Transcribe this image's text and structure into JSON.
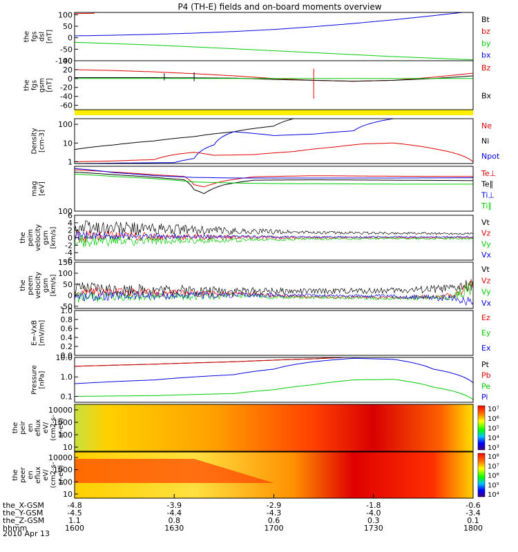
{
  "title": "P4 (TH-E) fields and on-board moments overview",
  "date_label": "2010 Apr 13",
  "colors": {
    "black": "#000000",
    "red": "#e00000",
    "green": "#00cc00",
    "blue": "#0000e0",
    "yellow": "#ffee00"
  },
  "chart_data": [
    {
      "type": "line",
      "id": "fgs_dsl",
      "ylabel_lines": [
        "the",
        "fgs",
        "dsl",
        "[nT]"
      ],
      "yticks": [
        "100",
        "50",
        "0",
        "-50",
        "-100"
      ],
      "ylim": [
        -100,
        110
      ],
      "legend": [
        "Bt",
        "bz",
        "by",
        "bx"
      ],
      "series": [
        {
          "name": "Bt",
          "color": "black",
          "x": [
            1600,
            1645,
            1720,
            1800
          ],
          "y": [
            200,
            230,
            280,
            330
          ]
        },
        {
          "name": "bz",
          "color": "red",
          "x": [
            1600,
            1610
          ],
          "y": [
            105,
            106
          ]
        },
        {
          "name": "by",
          "color": "green",
          "x": [
            1600,
            1640,
            1680,
            1720,
            1760,
            1800
          ],
          "y": [
            -20,
            -32,
            -48,
            -65,
            -82,
            -96
          ]
        },
        {
          "name": "bx",
          "color": "blue",
          "x": [
            1600,
            1620,
            1640,
            1660,
            1680,
            1700,
            1720,
            1740,
            1760,
            1780,
            1800
          ],
          "y": [
            8,
            11,
            15,
            20,
            27,
            36,
            48,
            62,
            78,
            96,
            115
          ]
        }
      ]
    },
    {
      "type": "line",
      "id": "fgs_gsm",
      "ylabel_lines": [
        "the",
        "fgs",
        "gsm",
        "[nT]"
      ],
      "yticks": [
        "40",
        "20",
        "0",
        "-20",
        "-40",
        "-60"
      ],
      "ylim": [
        -70,
        40
      ],
      "legend": [
        "Bz",
        "Bx"
      ],
      "series": [
        {
          "name": "Bz",
          "color": "red",
          "x": [
            1600,
            1620,
            1640,
            1660,
            1680,
            1700,
            1720,
            1740,
            1760,
            1780,
            1800
          ],
          "y": [
            20,
            18,
            15,
            11,
            6,
            0,
            -4,
            -6,
            -4,
            3,
            12
          ]
        },
        {
          "name": "Bx",
          "color": "black",
          "x": [
            1600,
            1640,
            1680,
            1700,
            1720,
            1740,
            1760,
            1780,
            1800
          ],
          "y": [
            2,
            2,
            1,
            -2,
            -4,
            -6,
            -4,
            0,
            6
          ]
        },
        {
          "name": "By",
          "color": "green",
          "x": [
            1600,
            1700,
            1800
          ],
          "y": [
            0,
            0,
            0
          ]
        }
      ]
    },
    {
      "type": "line",
      "id": "density",
      "scale": "log",
      "ylabel_lines": [
        "Density",
        "[cm-3]"
      ],
      "yticks": [
        "100",
        "10",
        "1"
      ],
      "ylim": [
        0.8,
        200
      ],
      "legend": [
        "Ne",
        "Ni",
        "Npot"
      ],
      "series": [
        {
          "name": "Ne",
          "color": "red",
          "x": [
            1600,
            1620,
            1640,
            1650,
            1660,
            1670,
            1690,
            1710,
            1730,
            1745,
            1760,
            1780,
            1800
          ],
          "y": [
            1.0,
            1.1,
            1.3,
            2.4,
            3.2,
            2.2,
            2.4,
            3.5,
            6,
            9,
            10,
            5,
            1
          ]
        },
        {
          "name": "Ni",
          "color": "black",
          "x": [
            1600,
            1620,
            1640,
            1660,
            1680,
            1700,
            1710
          ],
          "y": [
            4.5,
            8,
            13,
            22,
            40,
            80,
            200
          ]
        },
        {
          "name": "Npot",
          "color": "blue",
          "x": [
            1600,
            1650,
            1660,
            1670,
            1680,
            1700,
            1720,
            1740,
            1760,
            1770
          ],
          "y": [
            0.8,
            0.9,
            1.5,
            8,
            40,
            25,
            30,
            45,
            200,
            200
          ]
        }
      ]
    },
    {
      "type": "line",
      "id": "temperature",
      "scale": "log",
      "ylabel_lines": [
        "mag",
        "[eV]"
      ],
      "yticks": [
        "100"
      ],
      "ylim": [
        100,
        10000.0
      ],
      "legend": [
        "Te⊥",
        "Te∥",
        "Ti⊥",
        "Ti∥"
      ],
      "series": [
        {
          "name": "Te⊥",
          "color": "red",
          "x": [
            1600,
            1620,
            1640,
            1655,
            1660,
            1665,
            1675,
            1690,
            1720,
            1760,
            1800
          ],
          "y": [
            7000,
            5500,
            4200,
            3500,
            1500,
            1200,
            2200,
            3400,
            3800,
            3600,
            3500
          ]
        },
        {
          "name": "Te∥",
          "color": "black",
          "x": [
            1600,
            1620,
            1640,
            1655,
            1660,
            1665,
            1675,
            1690,
            1720,
            1760,
            1800
          ],
          "y": [
            5500,
            4200,
            3200,
            2500,
            900,
            600,
            1500,
            2400,
            2500,
            2400,
            2300
          ]
        },
        {
          "name": "Ti⊥",
          "color": "blue",
          "x": [
            1600,
            1620,
            1640,
            1660,
            1680,
            1700,
            1760,
            1800
          ],
          "y": [
            8000,
            5200,
            3800,
            3200,
            3000,
            3000,
            3000,
            3100
          ]
        },
        {
          "name": "Ti∥",
          "color": "green",
          "x": [
            1600,
            1620,
            1640,
            1660,
            1680,
            1700,
            1760,
            1800
          ],
          "y": [
            4500,
            3500,
            2800,
            2000,
            1800,
            1700,
            1600,
            1600
          ]
        }
      ]
    },
    {
      "type": "line",
      "id": "peim_velocity",
      "noisy": true,
      "ylabel_lines": [
        "the",
        "peim",
        "velocity",
        "gsm",
        "[km/s]"
      ],
      "yticks": [
        "6",
        "4",
        "2",
        "0",
        "-2",
        "-4",
        "-6"
      ],
      "ylim": [
        -6,
        6
      ],
      "legend": [
        "Vt",
        "Vz",
        "Vy",
        "Vx"
      ],
      "series": [
        {
          "name": "Vt",
          "color": "black",
          "x": [
            1600,
            1640,
            1680,
            1720,
            1760,
            1800
          ],
          "y": [
            2.8,
            2.3,
            1.8,
            1.4,
            1.2,
            1.1
          ],
          "noise": [
            2.4,
            1.6,
            0.9,
            0.4,
            0.3,
            0.3
          ]
        },
        {
          "name": "Vz",
          "color": "red",
          "x": [
            1600,
            1640,
            1680,
            1720,
            1760,
            1800
          ],
          "y": [
            0.5,
            0.3,
            0.1,
            0.0,
            0.0,
            0.0
          ],
          "noise": [
            1.8,
            1.0,
            0.6,
            0.3,
            0.2,
            0.2
          ]
        },
        {
          "name": "Vy",
          "color": "green",
          "x": [
            1600,
            1640,
            1680,
            1720,
            1760,
            1800
          ],
          "y": [
            -1.0,
            -0.9,
            -0.6,
            -0.3,
            -0.2,
            -0.3
          ],
          "noise": [
            1.8,
            1.0,
            0.6,
            0.3,
            0.2,
            0.3
          ]
        },
        {
          "name": "Vx",
          "color": "blue",
          "x": [
            1600,
            1640,
            1680,
            1720,
            1760,
            1800
          ],
          "y": [
            0.5,
            0.4,
            0.3,
            0.2,
            0.2,
            0.2
          ],
          "noise": [
            1.2,
            0.7,
            0.4,
            0.2,
            0.2,
            0.2
          ]
        }
      ]
    },
    {
      "type": "line",
      "id": "peem_velocity",
      "noisy": true,
      "ylabel_lines": [
        "the",
        "peem",
        "velocity",
        "gsm",
        "[km/s]"
      ],
      "yticks": [
        "150",
        "100",
        "50",
        "0",
        "-50"
      ],
      "ylim": [
        -60,
        150
      ],
      "legend": [
        "Vt",
        "Vz",
        "Vy",
        "Vx"
      ],
      "series": [
        {
          "name": "Vt",
          "color": "black",
          "x": [
            1600,
            1640,
            1680,
            1720,
            1760,
            1790,
            1800
          ],
          "y": [
            30,
            25,
            20,
            18,
            22,
            30,
            50
          ],
          "noise": [
            30,
            25,
            18,
            12,
            14,
            20,
            30
          ]
        },
        {
          "name": "Vz",
          "color": "red",
          "x": [
            1600,
            1640,
            1680,
            1720,
            1760,
            1790,
            1800
          ],
          "y": [
            15,
            12,
            5,
            -8,
            -10,
            -5,
            60
          ],
          "noise": [
            22,
            18,
            12,
            6,
            6,
            15,
            30
          ]
        },
        {
          "name": "Vy",
          "color": "green",
          "x": [
            1600,
            1640,
            1680,
            1720,
            1760,
            1790,
            1800
          ],
          "y": [
            -10,
            -8,
            -5,
            -10,
            -15,
            -10,
            40
          ],
          "noise": [
            25,
            18,
            12,
            6,
            6,
            15,
            40
          ]
        },
        {
          "name": "Vx",
          "color": "blue",
          "x": [
            1600,
            1640,
            1680,
            1720,
            1760,
            1790,
            1800
          ],
          "y": [
            -5,
            -3,
            0,
            0,
            -5,
            -15,
            -30
          ],
          "noise": [
            22,
            18,
            12,
            6,
            8,
            15,
            30
          ]
        }
      ]
    },
    {
      "type": "line",
      "id": "efield",
      "ylabel_lines": [
        "E=-VxB",
        "[mV/m]"
      ],
      "yticks": [
        "1.0",
        "0.8",
        "0.6",
        "0.4",
        "0.2",
        "0.0"
      ],
      "ylim": [
        0,
        1
      ],
      "legend": [
        "Ez",
        "Ey",
        "Ex"
      ],
      "series": []
    },
    {
      "type": "line",
      "id": "pressure",
      "scale": "log",
      "ylabel_lines": [
        "Pressure",
        "[nPa]"
      ],
      "yticks": [
        "10.0",
        "1.0",
        "0.1"
      ],
      "ylim": [
        0.05,
        10
      ],
      "legend": [
        "Pt",
        "Pb",
        "Pe",
        "Pi"
      ],
      "series": [
        {
          "name": "Pt",
          "color": "black",
          "x": [
            1600,
            1640,
            1680,
            1720,
            1735
          ],
          "y": [
            3.5,
            4.5,
            6,
            8.5,
            10
          ]
        },
        {
          "name": "Pb",
          "color": "red",
          "x": [
            1600,
            1640,
            1680,
            1720,
            1735
          ],
          "y": [
            3.5,
            4.5,
            6,
            8.5,
            10
          ]
        },
        {
          "name": "Pe",
          "color": "green",
          "x": [
            1600,
            1640,
            1680,
            1700,
            1720,
            1740,
            1760,
            1780,
            1800
          ],
          "y": [
            0.1,
            0.11,
            0.14,
            0.22,
            0.4,
            0.7,
            0.75,
            0.3,
            0.07
          ]
        },
        {
          "name": "Pi",
          "color": "blue",
          "x": [
            1600,
            1640,
            1680,
            1700,
            1720,
            1740,
            1760,
            1780,
            1800
          ],
          "y": [
            0.45,
            0.7,
            1.3,
            2.5,
            6,
            9,
            8,
            2.5,
            0.5
          ]
        }
      ]
    },
    {
      "type": "heatmap",
      "id": "peir_eflux",
      "ylabel_lines": [
        "the",
        "peir",
        "en",
        "eflux",
        "eV/",
        "(cm2-s-",
        "sr-eV)"
      ],
      "yticks": [
        "10000",
        "1000",
        "100",
        "10"
      ],
      "colorbar_ticks": [
        "10⁷",
        "10⁶",
        "10⁵",
        "10⁴",
        "10³"
      ]
    },
    {
      "type": "heatmap",
      "id": "peer_eflux",
      "ylabel_lines": [
        "the",
        "peer",
        "en",
        "eflux",
        "eV/",
        "(cm2-s-",
        "sr-eV)"
      ],
      "yticks": [
        "10000",
        "1000",
        "100",
        "10"
      ],
      "colorbar_ticks": [
        "10⁸",
        "10⁷",
        "10⁶",
        "10⁵",
        "10⁴"
      ]
    }
  ],
  "x_axis": {
    "rows": [
      {
        "label": "the_X-GSM",
        "values": [
          "-4.8",
          "-3.9",
          "-2.9",
          "-1.8",
          "-0.6"
        ]
      },
      {
        "label": "the_Y-GSM",
        "values": [
          "-4.5",
          "-4.4",
          "-4.3",
          "-4.0",
          "-3.4"
        ]
      },
      {
        "label": "the_Z-GSM",
        "values": [
          "1.1",
          "0.8",
          "0.6",
          "0.3",
          "0.1"
        ]
      },
      {
        "label": "hhmm",
        "values": [
          "1600",
          "1630",
          "1700",
          "1730",
          "1800"
        ]
      }
    ]
  }
}
